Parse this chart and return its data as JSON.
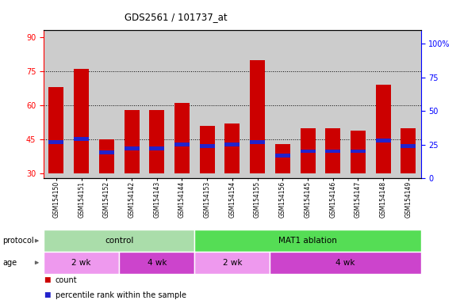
{
  "title": "GDS2561 / 101737_at",
  "samples": [
    "GSM154150",
    "GSM154151",
    "GSM154152",
    "GSM154142",
    "GSM154143",
    "GSM154144",
    "GSM154153",
    "GSM154154",
    "GSM154155",
    "GSM154156",
    "GSM154145",
    "GSM154146",
    "GSM154147",
    "GSM154148",
    "GSM154149"
  ],
  "count_values": [
    68,
    76,
    45,
    58,
    58,
    61,
    51,
    52,
    80,
    43,
    50,
    50,
    49,
    69,
    50
  ],
  "percentile_values": [
    27,
    29,
    19,
    22,
    22,
    25,
    24,
    25,
    27,
    17,
    20,
    20,
    20,
    28,
    24
  ],
  "bar_bottom": 30,
  "ylim_left": [
    28,
    93
  ],
  "ylim_right": [
    0,
    110
  ],
  "yticks_left": [
    30,
    45,
    60,
    75,
    90
  ],
  "yticks_right": [
    0,
    25,
    50,
    75,
    100
  ],
  "ytick_labels_right": [
    "0",
    "25",
    "50",
    "75",
    "100%"
  ],
  "grid_lines": [
    45,
    60,
    75
  ],
  "bar_color": "#cc0000",
  "percentile_color": "#2222cc",
  "bg_color": "#cccccc",
  "plot_bg": "#e8e8e8",
  "protocol_groups": [
    {
      "label": "control",
      "start": 0,
      "end": 6,
      "color": "#aaddaa"
    },
    {
      "label": "MAT1 ablation",
      "start": 6,
      "end": 15,
      "color": "#55dd55"
    }
  ],
  "age_groups": [
    {
      "label": "2 wk",
      "start": 0,
      "end": 3,
      "color": "#ee99ee"
    },
    {
      "label": "4 wk",
      "start": 3,
      "end": 6,
      "color": "#cc44cc"
    },
    {
      "label": "2 wk",
      "start": 6,
      "end": 9,
      "color": "#ee99ee"
    },
    {
      "label": "4 wk",
      "start": 9,
      "end": 15,
      "color": "#cc44cc"
    }
  ],
  "protocol_label": "protocol",
  "age_label": "age"
}
